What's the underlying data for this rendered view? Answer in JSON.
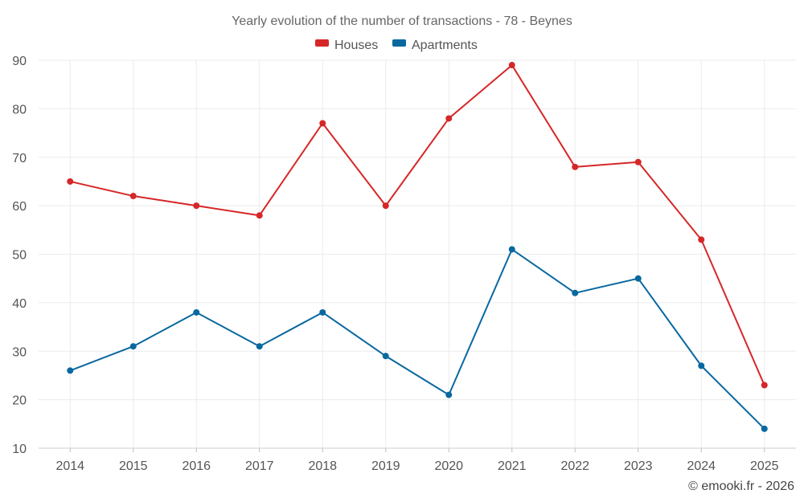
{
  "chart_data": {
    "type": "line",
    "title": "Yearly evolution of the number of transactions - 78 - Beynes",
    "categories": [
      "2014",
      "2015",
      "2016",
      "2017",
      "2018",
      "2019",
      "2020",
      "2021",
      "2022",
      "2023",
      "2024",
      "2025"
    ],
    "series": [
      {
        "name": "Houses",
        "color": "#d62728",
        "values": [
          65,
          62,
          60,
          58,
          77,
          60,
          78,
          89,
          68,
          69,
          53,
          23
        ]
      },
      {
        "name": "Apartments",
        "color": "#0868a0",
        "values": [
          26,
          31,
          38,
          31,
          38,
          29,
          21,
          51,
          42,
          45,
          27,
          14
        ]
      }
    ],
    "ylim": [
      10,
      90
    ],
    "yticks": [
      10,
      20,
      30,
      40,
      50,
      60,
      70,
      80,
      90
    ],
    "xlabel": "",
    "ylabel": "",
    "grid": true,
    "legend": "top-center"
  },
  "credit": "© emooki.fr - 2026"
}
